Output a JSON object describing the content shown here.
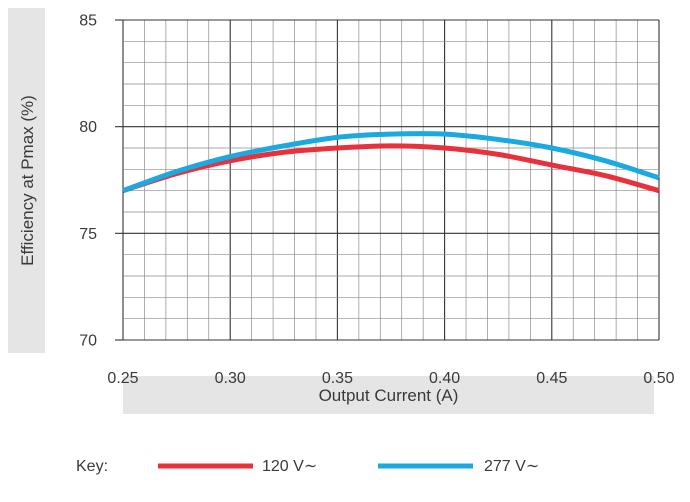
{
  "chart_data": {
    "type": "line",
    "xlabel": "Output Current (A)",
    "ylabel": "Efficiency at Pmax (%)",
    "xlim": [
      0.25,
      0.5
    ],
    "ylim": [
      70,
      85
    ],
    "x_ticks": [
      0.25,
      0.3,
      0.35,
      0.4,
      0.45,
      0.5
    ],
    "x_tick_labels": [
      "0.25",
      "0.30",
      "0.35",
      "0.40",
      "0.45",
      "0.50"
    ],
    "y_ticks": [
      70,
      75,
      80,
      85
    ],
    "y_tick_labels": [
      "70",
      "75",
      "80",
      "85"
    ],
    "grid": true,
    "legend_position": "bottom",
    "legend_title": "Key:",
    "series": [
      {
        "name": "120 V∼",
        "color": "#e8313a",
        "x": [
          0.25,
          0.275,
          0.3,
          0.325,
          0.35,
          0.375,
          0.4,
          0.425,
          0.45,
          0.475,
          0.5
        ],
        "values": [
          77.0,
          77.8,
          78.4,
          78.8,
          79.0,
          79.1,
          79.0,
          78.7,
          78.2,
          77.7,
          77.0
        ]
      },
      {
        "name": "277 V∼",
        "color": "#1ba9e1",
        "x": [
          0.25,
          0.275,
          0.3,
          0.325,
          0.35,
          0.375,
          0.4,
          0.425,
          0.45,
          0.475,
          0.5
        ],
        "values": [
          77.0,
          77.9,
          78.6,
          79.1,
          79.5,
          79.65,
          79.65,
          79.4,
          79.0,
          78.4,
          77.6
        ]
      }
    ]
  }
}
